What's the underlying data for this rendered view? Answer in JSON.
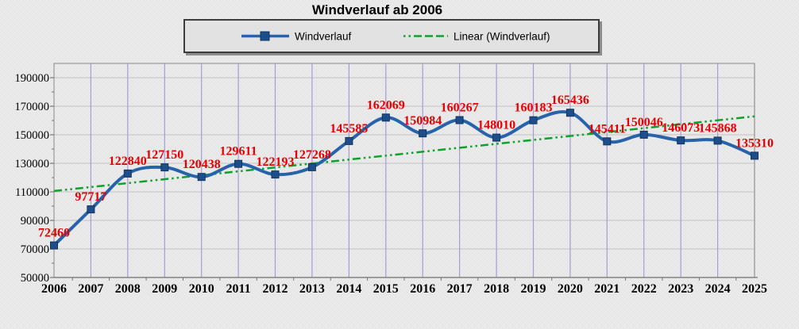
{
  "chart": {
    "title": "Windverlauf ab 2006",
    "legend": [
      {
        "label": "Windverlauf"
      },
      {
        "label": "Linear (Windverlauf)"
      }
    ]
  },
  "chart_data": {
    "type": "line",
    "title": "Windverlauf ab 2006",
    "categories": [
      "2006",
      "2007",
      "2008",
      "2009",
      "2010",
      "2011",
      "2012",
      "2013",
      "2014",
      "2015",
      "2016",
      "2017",
      "2018",
      "2019",
      "2020",
      "2021",
      "2022",
      "2023",
      "2024",
      "2025"
    ],
    "series": [
      {
        "name": "Windverlauf",
        "values": [
          72460,
          97717,
          122840,
          127150,
          120438,
          129611,
          122193,
          127268,
          145585,
          162069,
          150984,
          160267,
          148010,
          160183,
          165436,
          145411,
          150046,
          146073,
          145868,
          135310
        ],
        "color": "#2763ab",
        "marker_color": "#1d4e8a",
        "marker_stroke": "#12355e",
        "marker": "square",
        "smoothed": true
      },
      {
        "name": "Linear (Windverlauf)",
        "type": "linear_trendline",
        "color": "#0ca32c",
        "style": "dash-dot-dot"
      }
    ],
    "ylim": [
      50000,
      200000
    ],
    "yticks": [
      50000,
      70000,
      90000,
      110000,
      130000,
      150000,
      170000,
      190000
    ],
    "data_label_color": "#e60000",
    "axis_label_color": "#000000",
    "grid": {
      "horizontal_color": "#c3c3c3",
      "vertical_color": "#a99bd4",
      "border_color": "#9a9a9a",
      "axis_color": "#777777"
    },
    "legend_position": "top",
    "grid_on": true
  }
}
